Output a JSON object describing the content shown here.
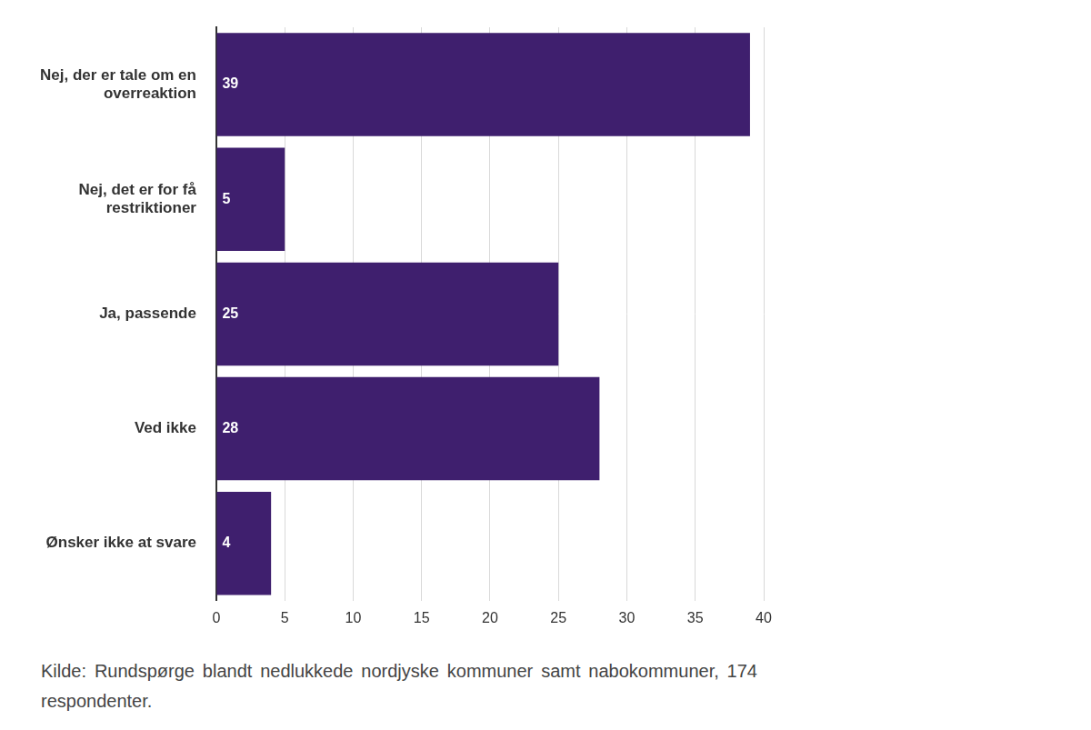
{
  "chart_data": {
    "type": "bar",
    "orientation": "horizontal",
    "categories": [
      "Nej, der er tale om en overreaktion",
      "Nej, det er for få restriktioner",
      "Ja, passende",
      "Ved ikke",
      "Ønsker ikke at svare"
    ],
    "values": [
      39,
      5,
      25,
      28,
      4
    ],
    "color": "#3f1f6e",
    "xlim": [
      0,
      40
    ],
    "xticks": [
      0,
      5,
      10,
      15,
      20,
      25,
      30,
      35,
      40
    ],
    "grid": true,
    "data_labels": true,
    "note": "Kilde: Rundspørge blandt nedlukkede nordjyske kommuner samt nabokommuner, 174 respondenter."
  }
}
